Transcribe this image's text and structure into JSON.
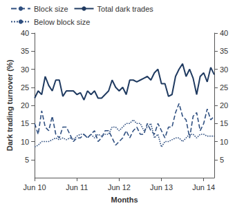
{
  "chart_data": {
    "type": "line",
    "x_label": "Months",
    "y_label": "Dark trading turnover (%)",
    "categories": [
      "Jun 10",
      null,
      null,
      null,
      null,
      null,
      null,
      null,
      null,
      null,
      null,
      null,
      "Jun 11",
      null,
      null,
      null,
      null,
      null,
      null,
      null,
      null,
      null,
      null,
      null,
      "Jun 12",
      null,
      null,
      null,
      null,
      null,
      null,
      null,
      null,
      null,
      null,
      null,
      "Jun 13",
      null,
      null,
      null,
      null,
      null,
      null,
      null,
      null,
      null,
      null,
      null,
      "Jun 14",
      null,
      null,
      null
    ],
    "series": [
      {
        "name": "Block size",
        "color": "#2f4f80",
        "line_style": "dashed",
        "values": [
          15,
          12,
          18.5,
          14,
          13,
          17,
          12,
          11,
          14,
          14,
          12,
          10,
          11,
          11,
          12,
          11,
          12,
          13,
          10,
          11,
          13,
          13,
          11,
          9,
          10,
          11,
          13,
          11,
          13,
          14,
          12,
          12,
          15,
          13,
          12,
          15,
          13,
          11,
          14,
          14,
          18,
          20.5,
          17,
          16,
          11,
          17,
          18,
          13,
          15,
          19,
          16,
          17
        ]
      },
      {
        "name": "Total dark trades",
        "color": "#1f3a60",
        "line_style": "solid",
        "values": [
          22,
          24,
          23,
          28,
          25.5,
          24,
          27,
          27,
          22.5,
          24,
          24,
          24,
          23,
          23.5,
          21.5,
          24,
          23,
          24,
          22,
          22,
          23,
          24,
          27,
          25,
          24,
          25,
          23,
          27,
          27,
          26.5,
          27,
          27.5,
          28,
          27,
          29,
          30,
          26,
          26,
          22.5,
          23,
          28,
          30,
          31.5,
          28,
          30,
          27.5,
          23,
          28,
          29,
          26.5,
          30.5,
          28.5
        ]
      },
      {
        "name": "Below block size",
        "color": "#2f4f80",
        "line_style": "dotted",
        "values": [
          8.5,
          9,
          10,
          10,
          10,
          10.5,
          11,
          10.5,
          11,
          10.5,
          11,
          10.5,
          11.5,
          12,
          12,
          11,
          12,
          11,
          12,
          11.5,
          12,
          12,
          14,
          14,
          13,
          14,
          15,
          15,
          16,
          15,
          15,
          13,
          14,
          15,
          11,
          12,
          8.5,
          10,
          10,
          10.5,
          11,
          11,
          10,
          11,
          12,
          12,
          11,
          12,
          12,
          11.5,
          11.5,
          11.5
        ]
      }
    ],
    "ylim": [
      0,
      40
    ],
    "yticks": [
      5,
      10,
      15,
      20,
      25,
      30,
      35,
      40
    ],
    "y2lim": [
      0,
      40
    ],
    "y2ticks": [
      5,
      10,
      15,
      20,
      25,
      30,
      35,
      40
    ],
    "grid": false,
    "legend": "top"
  }
}
